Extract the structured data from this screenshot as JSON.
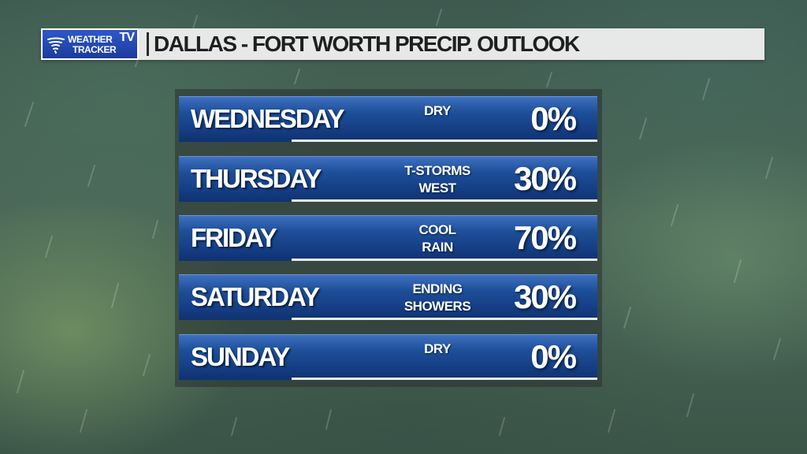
{
  "header": {
    "logo_line1": "WEATHER",
    "logo_line2": "TRACKER",
    "logo_tv": "TV",
    "title": "DALLAS - FORT WORTH PRECIP. OUTLOOK"
  },
  "colors": {
    "row_blue": "#1e4f99",
    "header_bg": "#e7e8e8",
    "logo_blue": "#2f58c8"
  },
  "forecast": [
    {
      "day": "WEDNESDAY",
      "cond_line1": "DRY",
      "cond_line2": "",
      "precip_pct": 0,
      "precip": "0%"
    },
    {
      "day": "THURSDAY",
      "cond_line1": "T-STORMS",
      "cond_line2": "WEST",
      "precip_pct": 30,
      "precip": "30%"
    },
    {
      "day": "FRIDAY",
      "cond_line1": "COOL",
      "cond_line2": "RAIN",
      "precip_pct": 70,
      "precip": "70%"
    },
    {
      "day": "SATURDAY",
      "cond_line1": "ENDING",
      "cond_line2": "SHOWERS",
      "precip_pct": 30,
      "precip": "30%"
    },
    {
      "day": "SUNDAY",
      "cond_line1": "DRY",
      "cond_line2": "",
      "precip_pct": 0,
      "precip": "0%"
    }
  ]
}
